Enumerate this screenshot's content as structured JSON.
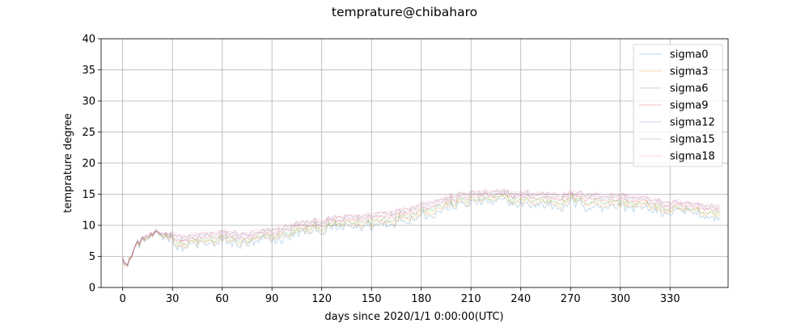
{
  "chart_data": {
    "type": "line",
    "title": "temprature@chibaharo",
    "xlabel": "days since 2020/1/1 0:00:00(UTC)",
    "ylabel": "temprature degree",
    "xlim": [
      -13,
      365
    ],
    "ylim": [
      0,
      40
    ],
    "xticks": [
      0,
      30,
      60,
      90,
      120,
      150,
      180,
      210,
      240,
      270,
      300,
      330
    ],
    "yticks": [
      0,
      5,
      10,
      15,
      20,
      25,
      30,
      35,
      40
    ],
    "grid": true,
    "legend_position": "top-right",
    "series": [
      {
        "name": "sigma0",
        "color": "#1f77b4",
        "alpha": 0.3,
        "offset": -0.9,
        "noise": 0.9,
        "x": [],
        "values": []
      },
      {
        "name": "sigma3",
        "color": "#ff7f0e",
        "alpha": 0.3,
        "offset": -0.5,
        "noise": 0.75,
        "x": [],
        "values": []
      },
      {
        "name": "sigma6",
        "color": "#2ca02c",
        "alpha": 0.3,
        "offset": -0.2,
        "noise": 0.6,
        "x": [],
        "values": []
      },
      {
        "name": "sigma9",
        "color": "#d62728",
        "alpha": 0.3,
        "offset": 0.2,
        "noise": 0.5,
        "x": [],
        "values": []
      },
      {
        "name": "sigma12",
        "color": "#9467bd",
        "alpha": 0.3,
        "offset": 0.5,
        "noise": 0.45,
        "x": [],
        "values": []
      },
      {
        "name": "sigma15",
        "color": "#8c564b",
        "alpha": 0.3,
        "offset": 0.8,
        "noise": 0.4,
        "x": [],
        "values": []
      },
      {
        "name": "sigma18",
        "color": "#e377c2",
        "alpha": 0.3,
        "offset": 1.0,
        "noise": 0.35,
        "x": [],
        "values": []
      }
    ],
    "trend_x": [
      0,
      3,
      8,
      15,
      30,
      35,
      45,
      60,
      75,
      90,
      105,
      120,
      135,
      150,
      165,
      180,
      195,
      210,
      225,
      240,
      255,
      270,
      285,
      300,
      315,
      330,
      345,
      360
    ],
    "trend_y": [
      5.0,
      3.6,
      6.8,
      8.2,
      8.5,
      7.2,
      7.6,
      8.0,
      7.7,
      8.3,
      9.4,
      10.0,
      10.5,
      10.9,
      11.6,
      12.6,
      13.6,
      14.4,
      14.5,
      14.3,
      14.2,
      14.3,
      14.1,
      14.0,
      13.5,
      12.7,
      12.5,
      12.4
    ]
  }
}
